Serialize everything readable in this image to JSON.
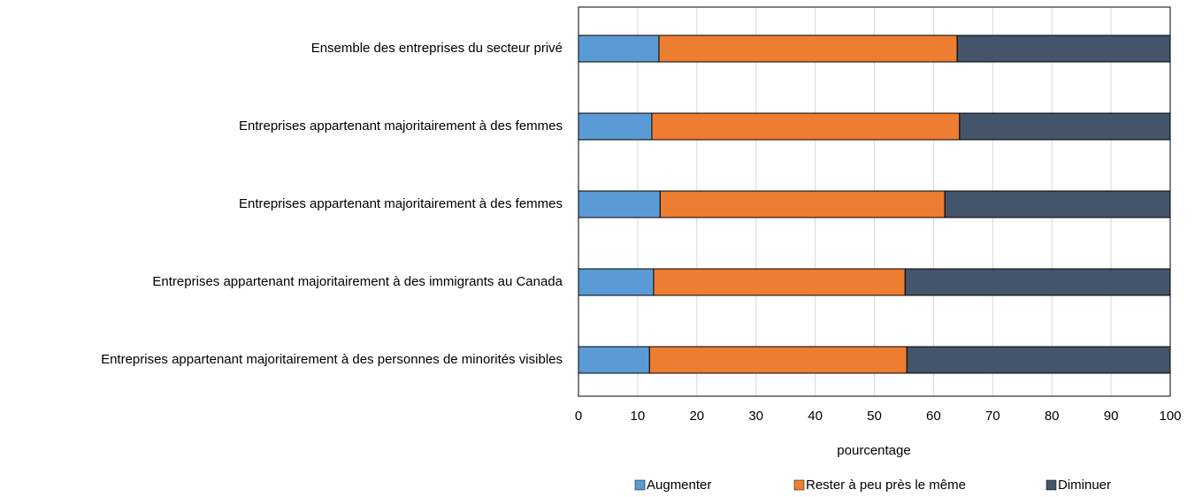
{
  "chart_data": {
    "type": "stacked-barh",
    "categories": [
      "Ensemble des entreprises du secteur privé",
      "Entreprises appartenant majoritairement à des femmes",
      "Entreprises appartenant majoritairement à des femmes",
      "Entreprises appartenant majoritairement à des immigrants au Canada",
      "Entreprises appartenant majoritairement à des personnes de minorités visibles"
    ],
    "series": [
      {
        "name": "Augmenter",
        "color": "#5b9bd5",
        "values": [
          13.6,
          12.4,
          13.8,
          12.7,
          12.0
        ]
      },
      {
        "name": "Rester à peu près le même",
        "color": "#ed7d31",
        "values": [
          50.4,
          52.0,
          48.1,
          42.5,
          43.5
        ]
      },
      {
        "name": "Diminuer",
        "color": "#44546a",
        "values": [
          36.0,
          35.6,
          38.1,
          44.8,
          44.5
        ]
      }
    ],
    "xlabel": "pourcentage",
    "xlim": [
      0,
      100
    ],
    "xticks": [
      0,
      10,
      20,
      30,
      40,
      50,
      60,
      70,
      80,
      90,
      100
    ],
    "grid": true,
    "legend": "bottom"
  }
}
